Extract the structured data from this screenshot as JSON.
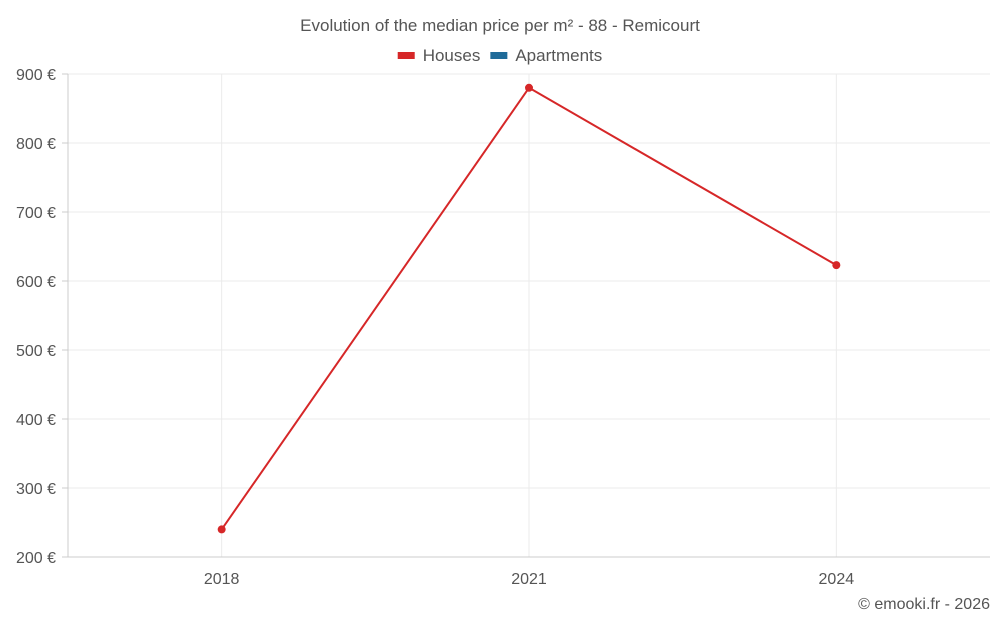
{
  "chart_data": {
    "type": "line",
    "title": "Evolution of the median price per m² - 88 - Remicourt",
    "categories": [
      "2018",
      "2021",
      "2024"
    ],
    "series": [
      {
        "name": "Houses",
        "color": "#d62728",
        "values": [
          240,
          880,
          623
        ]
      },
      {
        "name": "Apartments",
        "color": "#1f6b99",
        "values": [
          null,
          null,
          null
        ]
      }
    ],
    "ylim": [
      200,
      900
    ],
    "yticks": [
      200,
      300,
      400,
      500,
      600,
      700,
      800,
      900
    ],
    "ytick_suffix": " €",
    "xlabel": "",
    "ylabel": "",
    "grid": true,
    "legend_position": "top-center"
  },
  "credit": "© emooki.fr - 2026"
}
